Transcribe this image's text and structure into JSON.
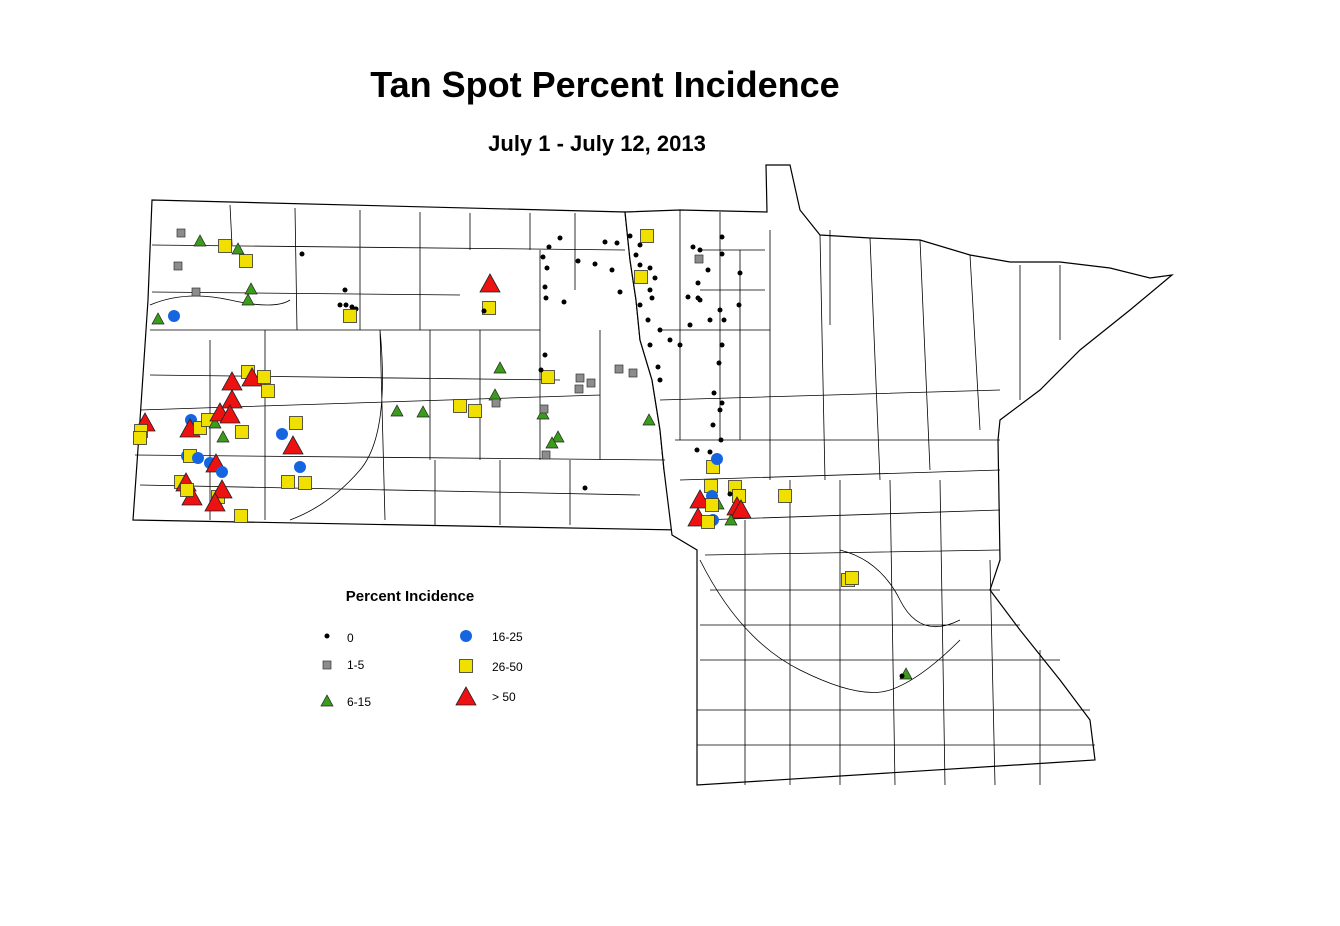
{
  "header": {
    "title": "Tan Spot Percent Incidence",
    "subtitle": "July 1 - July 12, 2013"
  },
  "legend": {
    "title": "Percent Incidence",
    "items": [
      {
        "label": "0"
      },
      {
        "label": "1-5"
      },
      {
        "label": "6-15"
      },
      {
        "label": "16-25"
      },
      {
        "label": "26-50"
      },
      {
        "label": "> 50"
      }
    ]
  }
}
